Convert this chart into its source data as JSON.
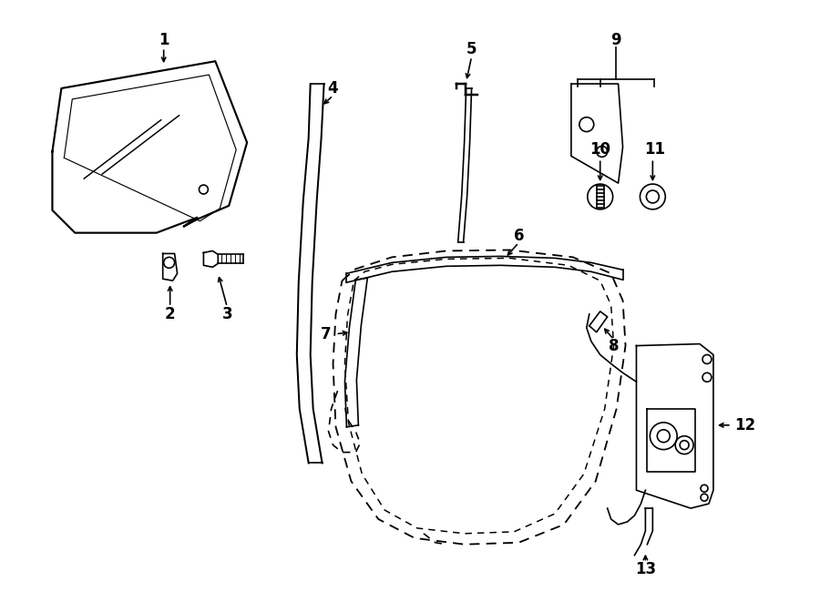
{
  "bg_color": "#ffffff",
  "line_color": "#000000",
  "fig_width": 9.0,
  "fig_height": 6.61,
  "dpi": 100,
  "lw": 1.2
}
